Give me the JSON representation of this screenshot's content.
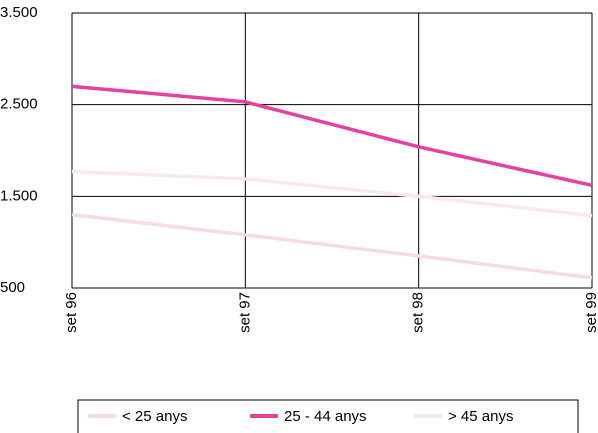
{
  "chart_data": {
    "type": "line",
    "categories": [
      "set 96",
      "set 97",
      "set 98",
      "set 99"
    ],
    "series": [
      {
        "name": "< 25 anys",
        "color": "#f5dbe6",
        "values": [
          1300,
          1080,
          850,
          610
        ]
      },
      {
        "name": "25 - 44 anys",
        "color": "#e641a0",
        "values": [
          2700,
          2530,
          2040,
          1620
        ]
      },
      {
        "name": "> 45 anys",
        "color": "#f9e9ef",
        "values": [
          1770,
          1690,
          1500,
          1290
        ]
      }
    ],
    "ylim": [
      500,
      3500
    ],
    "yticks": [
      500,
      {
        "value": 1500,
        "label": "1.500"
      },
      {
        "value": 2500,
        "label": "2.500"
      },
      {
        "value": 3500,
        "label": "3.500"
      }
    ],
    "grid": true,
    "legend": "bottom"
  }
}
